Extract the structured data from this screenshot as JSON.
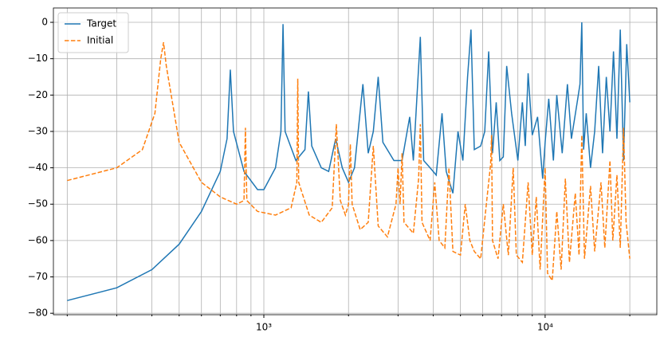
{
  "chart_data": {
    "type": "line",
    "xscale": "log",
    "grid": true,
    "legend": "upper left",
    "xlim": [
      178.6,
      24950
    ],
    "ylim": [
      -80.4,
      3.95
    ],
    "xticks": [
      {
        "value": 1000,
        "label": "10³"
      },
      {
        "value": 10000,
        "label": "10⁴"
      }
    ],
    "xminorticks": [
      200,
      300,
      400,
      500,
      600,
      700,
      800,
      900,
      2000,
      3000,
      4000,
      5000,
      6000,
      7000,
      8000,
      9000,
      20000
    ],
    "yticks": [
      0,
      {
        "value": -10,
        "label": "−10"
      },
      {
        "value": -20,
        "label": "−20"
      },
      {
        "value": -30,
        "label": "−30"
      },
      {
        "value": -40,
        "label": "−40"
      },
      {
        "value": -50,
        "label": "−50"
      },
      {
        "value": -60,
        "label": "−60"
      },
      {
        "value": -70,
        "label": "−70"
      },
      {
        "value": -80,
        "label": "−80"
      }
    ],
    "series": [
      {
        "name": "Target",
        "color": "#1f77b4",
        "dash": false,
        "x": [
          200,
          300,
          400,
          500,
          600,
          700,
          740,
          760,
          780,
          850,
          950,
          1000,
          1100,
          1150,
          1170,
          1190,
          1300,
          1400,
          1440,
          1480,
          1600,
          1700,
          1800,
          1900,
          2000,
          2100,
          2250,
          2350,
          2450,
          2550,
          2650,
          2900,
          3100,
          3300,
          3400,
          3600,
          3700,
          3900,
          4100,
          4300,
          4450,
          4700,
          4900,
          5100,
          5300,
          5450,
          5600,
          5900,
          6100,
          6300,
          6500,
          6700,
          6900,
          7100,
          7300,
          7600,
          8000,
          8300,
          8500,
          8700,
          9000,
          9400,
          9800,
          10000,
          10300,
          10700,
          11000,
          11500,
          12000,
          12400,
          13000,
          13300,
          13500,
          13700,
          14000,
          14500,
          15000,
          15500,
          16000,
          16500,
          17000,
          17500,
          18000,
          18500,
          19000,
          19500,
          20000
        ],
        "values": [
          -76.5,
          -73,
          -68,
          -61,
          -52,
          -41,
          -32,
          -13,
          -30,
          -41,
          -46,
          -46,
          -40,
          -30,
          -0.5,
          -30,
          -38,
          -35,
          -19,
          -34,
          -40,
          -41,
          -32,
          -40,
          -44,
          -40,
          -17,
          -36,
          -30,
          -15,
          -33,
          -38,
          -38,
          -26,
          -38,
          -4,
          -38,
          -40,
          -42,
          -25,
          -41,
          -47,
          -30,
          -38,
          -15,
          -2,
          -35,
          -34,
          -30,
          -8,
          -36,
          -22,
          -38,
          -37,
          -12,
          -25,
          -38,
          -22,
          -34,
          -14,
          -31,
          -26,
          -43,
          -33,
          -21,
          -38,
          -20,
          -36,
          -17,
          -32,
          -22,
          -17,
          0,
          -35,
          -25,
          -40,
          -30,
          -12,
          -36,
          -15,
          -30,
          -8,
          -32,
          -2,
          -38,
          -6,
          -22
        ]
      },
      {
        "name": "Initial",
        "color": "#ff7f0e",
        "dash": true,
        "x": [
          200,
          300,
          370,
          410,
          430,
          440,
          450,
          500,
          600,
          700,
          800,
          850,
          860,
          870,
          950,
          1100,
          1250,
          1310,
          1320,
          1330,
          1450,
          1600,
          1750,
          1810,
          1870,
          1950,
          2000,
          2030,
          2060,
          2200,
          2350,
          2450,
          2550,
          2750,
          2950,
          3000,
          3050,
          3100,
          3150,
          3400,
          3550,
          3600,
          3650,
          3900,
          4050,
          4200,
          4400,
          4550,
          4700,
          5000,
          5200,
          5400,
          5600,
          5900,
          6200,
          6400,
          6450,
          6500,
          6800,
          7100,
          7400,
          7700,
          7900,
          8300,
          8700,
          9000,
          9300,
          9600,
          10000,
          10200,
          10600,
          11000,
          11400,
          11800,
          12200,
          12800,
          13200,
          13500,
          13800,
          14500,
          15000,
          15800,
          16300,
          17000,
          17400,
          18000,
          18500,
          19000,
          19400,
          19700,
          20000
        ],
        "values": [
          -43.5,
          -40,
          -35,
          -25,
          -10,
          -5.5,
          -12,
          -33,
          -44,
          -48,
          -50,
          -49,
          -29,
          -49,
          -52,
          -53,
          -51,
          -44,
          -15.5,
          -44,
          -53,
          -55,
          -51,
          -28,
          -49,
          -53,
          -50,
          -33.5,
          -50,
          -57,
          -55,
          -34,
          -56,
          -59,
          -50,
          -40,
          -50,
          -36,
          -55,
          -58,
          -43,
          -28,
          -55,
          -60,
          -44,
          -60,
          -62,
          -40,
          -63,
          -64,
          -50,
          -60,
          -63,
          -65,
          -49,
          -39,
          -31,
          -60,
          -65,
          -50,
          -64,
          -40,
          -64,
          -66,
          -44,
          -64,
          -48,
          -68,
          -40,
          -69,
          -71,
          -52,
          -68,
          -43,
          -66,
          -47,
          -64,
          -31,
          -65,
          -45,
          -63,
          -44,
          -62,
          -38,
          -60,
          -42,
          -62,
          -29,
          -55,
          -60,
          -65
        ]
      }
    ]
  }
}
